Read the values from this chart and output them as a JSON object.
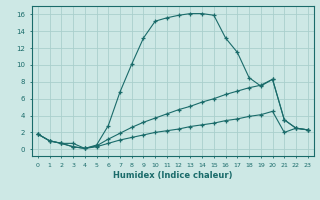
{
  "bg_color": "#cde8e5",
  "grid_color": "#aacfcc",
  "line_color": "#1a6b6a",
  "xlabel": "Humidex (Indice chaleur)",
  "xlim": [
    -0.5,
    23.5
  ],
  "ylim": [
    -0.8,
    17.0
  ],
  "yticks": [
    0,
    2,
    4,
    6,
    8,
    10,
    12,
    14,
    16
  ],
  "xticks": [
    0,
    1,
    2,
    3,
    4,
    5,
    6,
    7,
    8,
    9,
    10,
    11,
    12,
    13,
    14,
    15,
    16,
    17,
    18,
    19,
    20,
    21,
    22,
    23
  ],
  "line1_x": [
    0,
    1,
    2,
    3,
    4,
    5,
    6,
    7,
    8,
    9,
    10,
    11,
    12,
    13,
    14,
    15,
    16,
    17,
    18,
    19,
    20,
    21,
    22,
    23
  ],
  "line1_y": [
    1.8,
    1.0,
    0.7,
    0.7,
    0.1,
    0.5,
    2.8,
    6.8,
    10.1,
    13.2,
    15.2,
    15.6,
    15.9,
    16.1,
    16.1,
    15.9,
    13.2,
    11.5,
    8.5,
    7.5,
    8.3,
    3.5,
    2.5,
    2.3
  ],
  "line2_x": [
    0,
    1,
    2,
    3,
    4,
    5,
    6,
    7,
    8,
    9,
    10,
    11,
    12,
    13,
    14,
    15,
    16,
    17,
    18,
    19,
    20,
    21,
    22,
    23
  ],
  "line2_y": [
    1.8,
    1.0,
    0.7,
    0.3,
    0.1,
    0.4,
    1.2,
    1.9,
    2.6,
    3.2,
    3.7,
    4.2,
    4.7,
    5.1,
    5.6,
    6.0,
    6.5,
    6.9,
    7.3,
    7.6,
    8.3,
    3.5,
    2.5,
    2.3
  ],
  "line3_x": [
    0,
    1,
    2,
    3,
    4,
    5,
    6,
    7,
    8,
    9,
    10,
    11,
    12,
    13,
    14,
    15,
    16,
    17,
    18,
    19,
    20,
    21,
    22,
    23
  ],
  "line3_y": [
    1.8,
    1.0,
    0.7,
    0.3,
    0.1,
    0.3,
    0.7,
    1.1,
    1.4,
    1.7,
    2.0,
    2.2,
    2.4,
    2.7,
    2.9,
    3.1,
    3.4,
    3.6,
    3.9,
    4.1,
    4.5,
    2.0,
    2.5,
    2.3
  ]
}
